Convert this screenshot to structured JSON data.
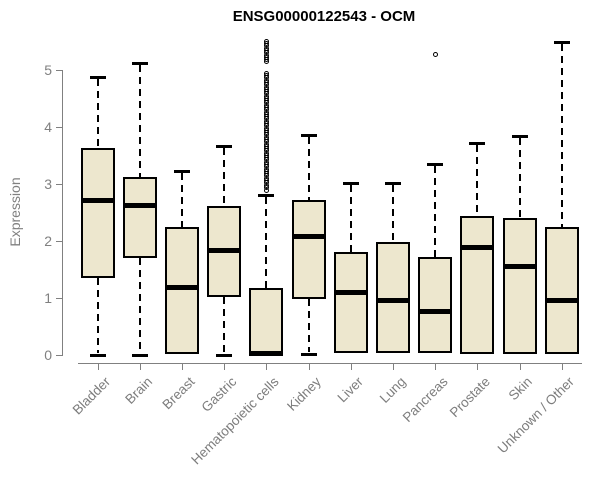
{
  "chart_data": {
    "type": "boxplot",
    "title": "ENSG00000122543 - OCM",
    "ylabel": "Expression",
    "xlabel": "",
    "yticks": [
      0,
      1,
      2,
      3,
      4,
      5
    ],
    "ylim": [
      0,
      5.6
    ],
    "grid": false,
    "legend": "none",
    "colors": {
      "box_fill": "#EDE7CE",
      "box_line": "#000000",
      "axis": "#808080",
      "title": "#000000"
    },
    "categories": [
      "Bladder",
      "Brain",
      "Breast",
      "Gastric",
      "Hematopoietic cells",
      "Kidney",
      "Liver",
      "Lung",
      "Pancreas",
      "Prostate",
      "Skin",
      "Unknown / Other"
    ],
    "boxes": [
      {
        "category": "Bladder",
        "whisker_low": 0,
        "q1": 1.35,
        "median": 2.72,
        "q3": 3.64,
        "whisker_high": 4.87,
        "outliers": []
      },
      {
        "category": "Brain",
        "whisker_low": 0,
        "q1": 1.7,
        "median": 2.63,
        "q3": 3.13,
        "whisker_high": 5.12,
        "outliers": []
      },
      {
        "category": "Breast",
        "whisker_low": 0.02,
        "q1": 0.02,
        "median": 1.19,
        "q3": 2.25,
        "whisker_high": 3.22,
        "outliers": []
      },
      {
        "category": "Gastric",
        "whisker_low": 0,
        "q1": 1.02,
        "median": 1.85,
        "q3": 2.62,
        "whisker_high": 3.66,
        "outliers": []
      },
      {
        "category": "Hematopoietic cells",
        "whisker_low": 0,
        "q1": 0.01,
        "median": 0.04,
        "q3": 1.17,
        "whisker_high": 2.81,
        "outliers": [
          5.51,
          5.47,
          5.43,
          5.39,
          5.35,
          5.31,
          5.27,
          5.23,
          5.19,
          5.15,
          4.95,
          4.91,
          4.87,
          4.83,
          4.79,
          4.75,
          4.71,
          4.67,
          4.63,
          4.59,
          4.55,
          4.51,
          4.47,
          4.43,
          4.39,
          4.35,
          4.31,
          4.27,
          4.23,
          4.19,
          4.15,
          4.11,
          4.07,
          4.03,
          3.99,
          3.95,
          3.91,
          3.87,
          3.83,
          3.79,
          3.75,
          3.71,
          3.67,
          3.63,
          3.59,
          3.55,
          3.51,
          3.47,
          3.43,
          3.39,
          3.35,
          3.31,
          3.27,
          3.23,
          3.19,
          3.15,
          3.11,
          3.07,
          3.03,
          2.99,
          2.94,
          2.89
        ]
      },
      {
        "category": "Kidney",
        "whisker_low": 0.02,
        "q1": 0.99,
        "median": 2.09,
        "q3": 2.72,
        "whisker_high": 3.86,
        "outliers": []
      },
      {
        "category": "Liver",
        "whisker_low": 0.04,
        "q1": 0.04,
        "median": 1.1,
        "q3": 1.81,
        "whisker_high": 3.01,
        "outliers": []
      },
      {
        "category": "Lung",
        "whisker_low": 0.04,
        "q1": 0.04,
        "median": 0.97,
        "q3": 1.98,
        "whisker_high": 3.01,
        "outliers": []
      },
      {
        "category": "Pancreas",
        "whisker_low": 0.04,
        "q1": 0.04,
        "median": 0.77,
        "q3": 1.72,
        "whisker_high": 3.35,
        "outliers": [
          5.28
        ]
      },
      {
        "category": "Prostate",
        "whisker_low": 0.01,
        "q1": 0.01,
        "median": 1.89,
        "q3": 2.43,
        "whisker_high": 3.72,
        "outliers": []
      },
      {
        "category": "Skin",
        "whisker_low": 0.01,
        "q1": 0.01,
        "median": 1.56,
        "q3": 2.41,
        "whisker_high": 3.84,
        "outliers": []
      },
      {
        "category": "Unknown / Other",
        "whisker_low": 0.01,
        "q1": 0.01,
        "median": 0.96,
        "q3": 2.25,
        "whisker_high": 5.49,
        "outliers": []
      }
    ]
  }
}
